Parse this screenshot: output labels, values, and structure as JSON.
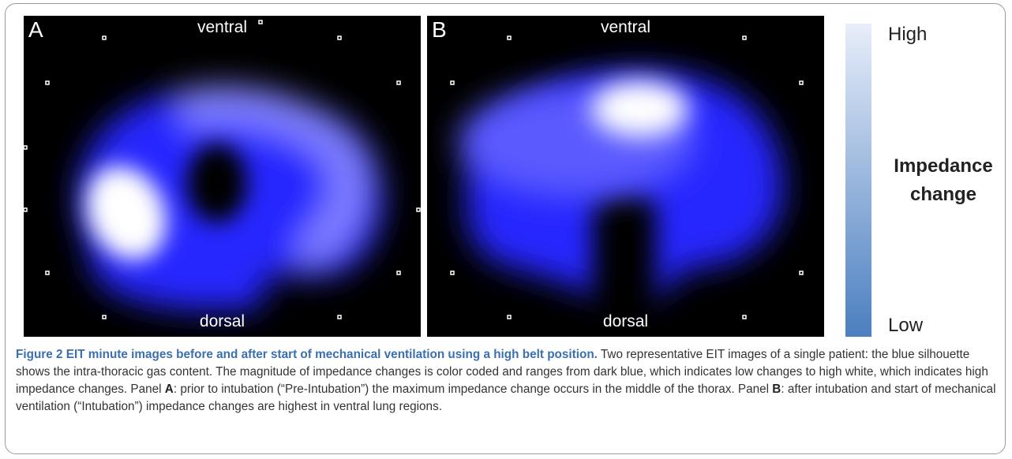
{
  "panels": [
    {
      "label": "A",
      "top": "ventral",
      "bottom": "dorsal"
    },
    {
      "label": "B",
      "top": "ventral",
      "bottom": "dorsal"
    }
  ],
  "colorbar": {
    "high": "High",
    "title_line_1": "Impedance",
    "title_line_2": "change",
    "low": "Low"
  },
  "caption": {
    "label": "Figure 2",
    "title": "EIT minute images before and after start of mechanical ventilation using a high belt position.",
    "text_1": "Two representative EIT images of a single patient: the blue silhouette shows the intra-thoracic gas content. The magnitude of impedance changes is color coded and ranges from dark blue, which indicates low changes to high white, which indicates high impedance changes. Panel",
    "panel_a": "A",
    "text_2": ": prior to intubation (“Pre-Intubation”) the maximum impedance change occurs in the middle of the thorax. Panel",
    "panel_b": "B",
    "text_3": ": after intubation and start of mechanical ventilation (“Intubation”) impedance changes are highest in ventral lung regions."
  }
}
